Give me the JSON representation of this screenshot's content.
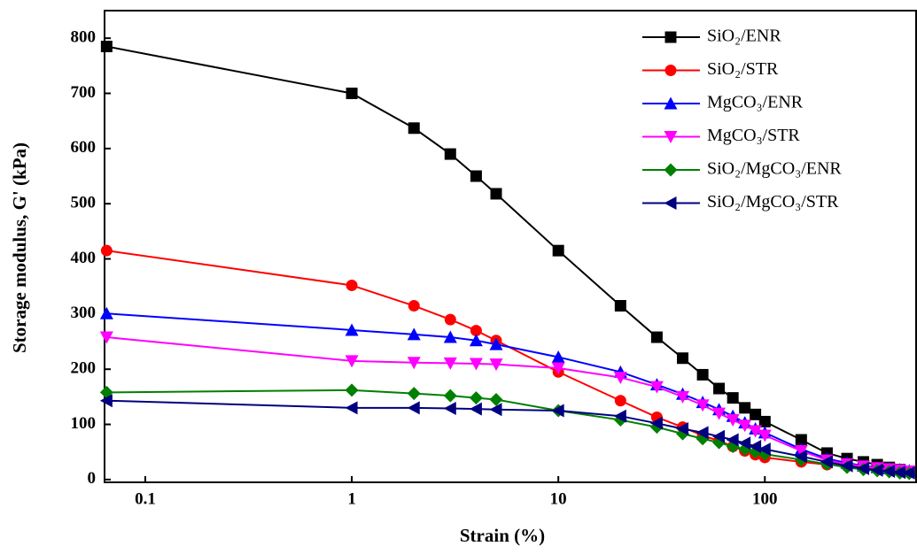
{
  "chart_data": {
    "type": "line",
    "x_label": "Strain (%)",
    "y_label": "Storage modulus, G' (kPa)",
    "x": [
      0.065,
      1,
      2,
      3,
      4,
      5,
      10,
      20,
      30,
      40,
      50,
      60,
      70,
      80,
      90,
      100,
      150,
      200,
      250,
      300,
      350,
      400,
      450,
      500
    ],
    "xlim": [
      0.0635,
      540
    ],
    "xticks": [
      0.1,
      1,
      10,
      100
    ],
    "xscale": "log",
    "ylim": [
      -5,
      850
    ],
    "yticks": [
      0,
      100,
      200,
      300,
      400,
      500,
      600,
      700,
      800
    ],
    "legend": "upper right",
    "series": [
      {
        "name": "SiO₂/ENR",
        "color": "#000000",
        "marker": "square",
        "values": [
          785,
          700,
          637,
          590,
          550,
          518,
          415,
          315,
          258,
          220,
          190,
          165,
          148,
          130,
          118,
          105,
          72,
          48,
          38,
          32,
          27,
          22,
          18,
          15
        ]
      },
      {
        "name": "SiO₂/STR",
        "color": "#ff0000",
        "marker": "circle",
        "values": [
          415,
          352,
          315,
          290,
          270,
          252,
          195,
          143,
          113,
          95,
          80,
          70,
          60,
          52,
          45,
          40,
          32,
          27,
          25,
          22,
          20,
          18,
          15,
          13
        ]
      },
      {
        "name": "MgCO₃/ENR",
        "color": "#0000ff",
        "marker": "triangle-up",
        "values": [
          301,
          271,
          263,
          258,
          252,
          245,
          222,
          195,
          172,
          155,
          140,
          127,
          115,
          103,
          92,
          85,
          55,
          38,
          30,
          25,
          22,
          20,
          18,
          16
        ]
      },
      {
        "name": "MgCO₃/STR",
        "color": "#ff00ff",
        "marker": "triangle-down",
        "values": [
          258,
          215,
          212,
          211,
          210,
          209,
          202,
          185,
          168,
          150,
          135,
          120,
          108,
          98,
          88,
          80,
          52,
          35,
          28,
          24,
          21,
          19,
          17,
          15
        ]
      },
      {
        "name": "SiO₂/MgCO₃/ENR",
        "color": "#008000",
        "marker": "diamond",
        "values": [
          158,
          162,
          156,
          152,
          148,
          145,
          125,
          108,
          95,
          83,
          74,
          67,
          60,
          55,
          50,
          46,
          36,
          28,
          22,
          18,
          16,
          14,
          12,
          11
        ]
      },
      {
        "name": "SiO₂/MgCO₃/STR",
        "color": "#000080",
        "marker": "triangle-left",
        "values": [
          143,
          130,
          130,
          129,
          128,
          127,
          125,
          115,
          102,
          92,
          85,
          78,
          72,
          66,
          60,
          55,
          42,
          32,
          25,
          20,
          17,
          15,
          13,
          12
        ]
      }
    ]
  }
}
